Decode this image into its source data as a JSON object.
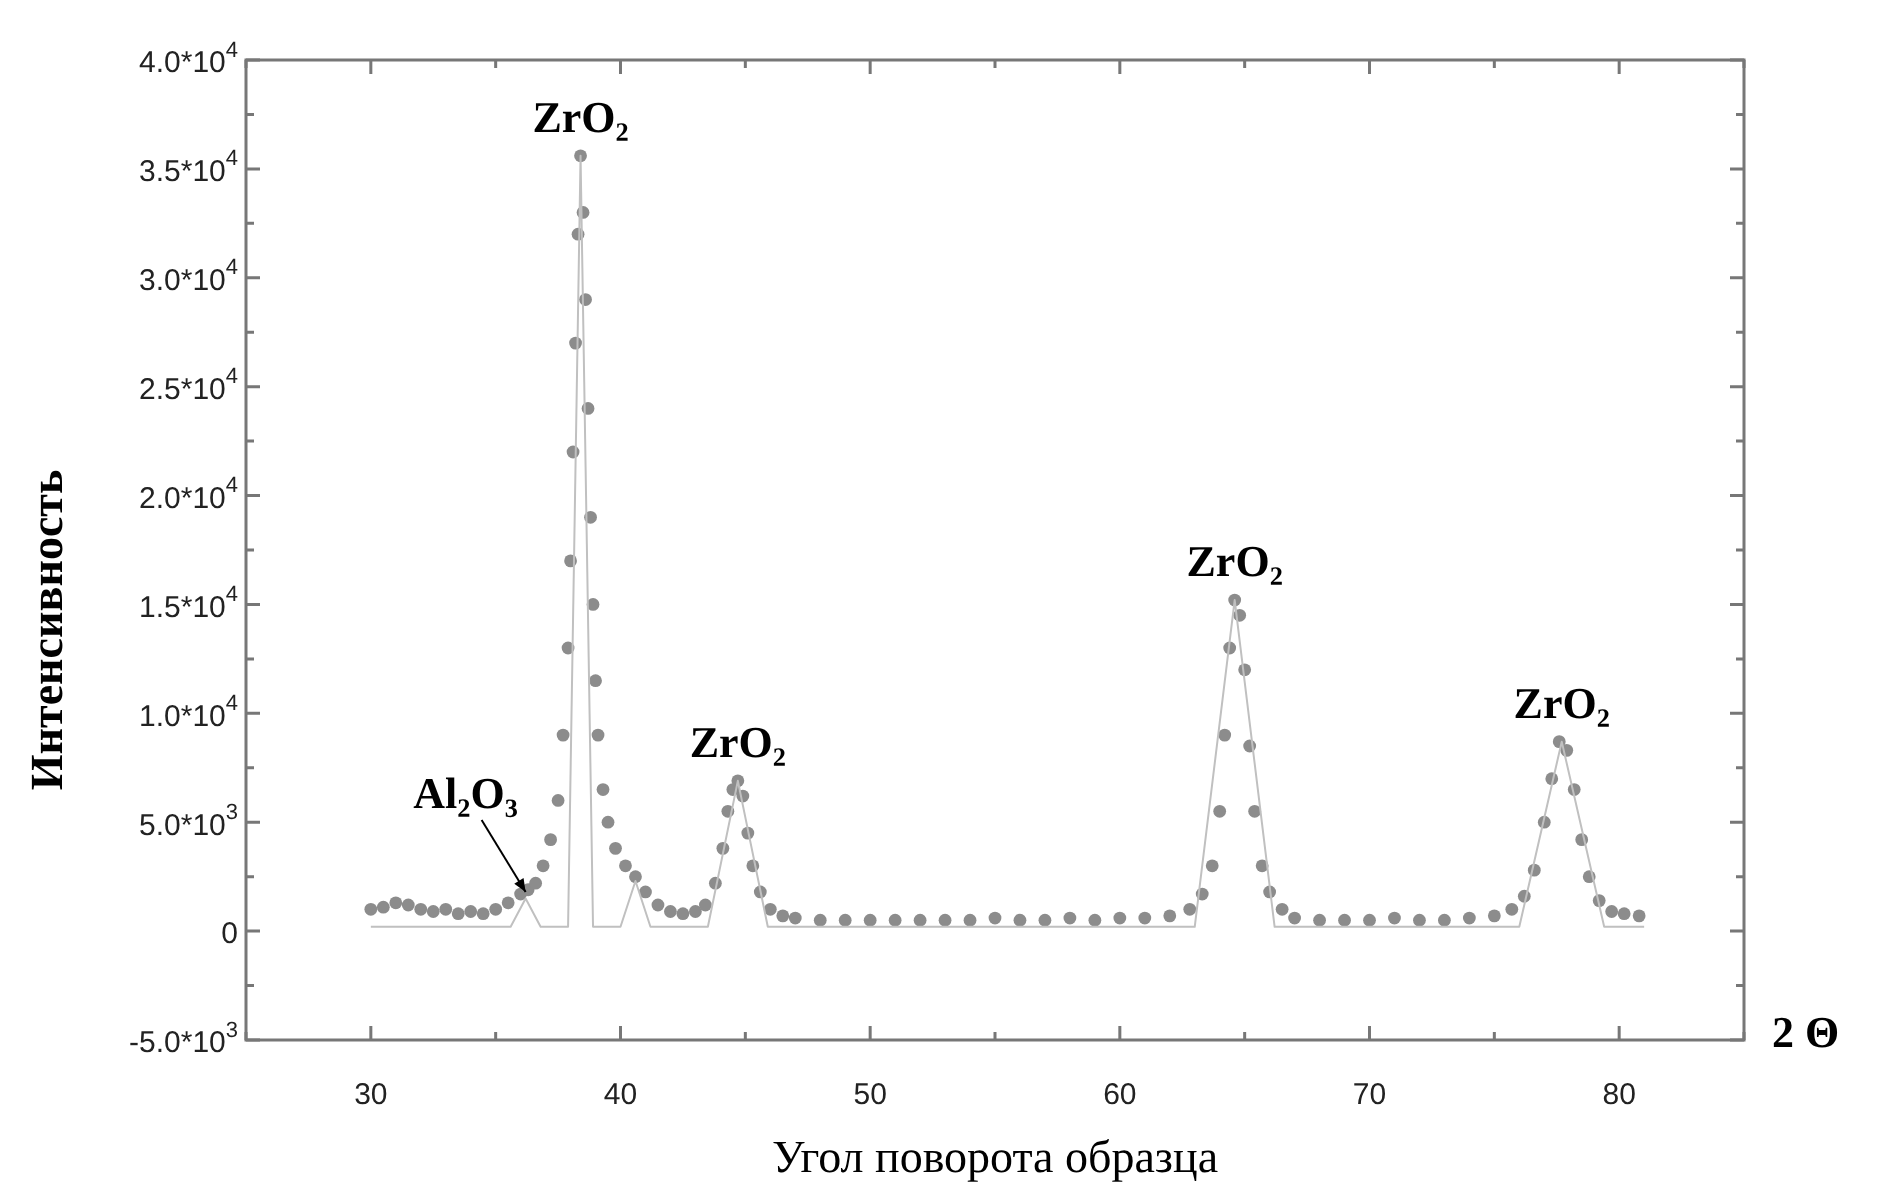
{
  "chart_data": {
    "type": "scatter",
    "xlabel": "Угол поворота образца",
    "ylabel": "Интенсивность",
    "marker": "circle",
    "xlim": [
      25,
      85
    ],
    "xticks": [
      {
        "value": 25,
        "label": null
      },
      30,
      {
        "value": 35,
        "label": null
      },
      40,
      {
        "value": 45,
        "label": null
      },
      50,
      {
        "value": 55,
        "label": null
      },
      60,
      {
        "value": 65,
        "label": null
      },
      70,
      {
        "value": 75,
        "label": null
      },
      80,
      {
        "value": 85,
        "label": null
      }
    ],
    "ylim": [
      -5000,
      40000
    ],
    "yticks": [
      {
        "value": -5000,
        "label": "-5.0*10$^{3}$"
      },
      {
        "value": -2500,
        "label": null
      },
      0,
      {
        "value": 2500,
        "label": null
      },
      {
        "value": 5000,
        "label": "5.0*10$^{3}$"
      },
      {
        "value": 7500,
        "label": null
      },
      {
        "value": 10000,
        "label": "1.0*10$^{4}$"
      },
      {
        "value": 12500,
        "label": null
      },
      {
        "value": 15000,
        "label": "1.5*10$^{4}$"
      },
      {
        "value": 17500,
        "label": null
      },
      {
        "value": 20000,
        "label": "2.0*10$^{4}$"
      },
      {
        "value": 22500,
        "label": null
      },
      {
        "value": 25000,
        "label": "2.5*10$^{4}$"
      },
      {
        "value": 27500,
        "label": null
      },
      {
        "value": 30000,
        "label": "3.0*10$^{4}$"
      },
      {
        "value": 32500,
        "label": null
      },
      {
        "value": 35000,
        "label": "3.5*10$^{4}$"
      },
      {
        "value": 37500,
        "label": null
      },
      {
        "value": 40000,
        "label": "4.0*10$^{4}$"
      }
    ],
    "series": [
      {
        "color": "#8c8c8c",
        "x": [
          30,
          30.5,
          31,
          31.5,
          32,
          32.5,
          33,
          33.5,
          34,
          34.5,
          35,
          35.5,
          36,
          36.3,
          36.6,
          36.9,
          37.2,
          37.5,
          37.7,
          37.9,
          38.0,
          38.1,
          38.2,
          38.3,
          38.4,
          38.5,
          38.6,
          38.7,
          38.8,
          38.9,
          39.0,
          39.1,
          39.3,
          39.5,
          39.8,
          40.2,
          40.6,
          41,
          41.5,
          42,
          42.5,
          43,
          43.4,
          43.8,
          44.1,
          44.3,
          44.5,
          44.7,
          44.9,
          45.1,
          45.3,
          45.6,
          46,
          46.5,
          47,
          48,
          49,
          50,
          51,
          52,
          53,
          54,
          55,
          56,
          57,
          58,
          59,
          60,
          61,
          62,
          62.8,
          63.3,
          63.7,
          64.0,
          64.2,
          64.4,
          64.6,
          64.8,
          65.0,
          65.2,
          65.4,
          65.7,
          66.0,
          66.5,
          67,
          68,
          69,
          70,
          71,
          72,
          73,
          74,
          75,
          75.7,
          76.2,
          76.6,
          77.0,
          77.3,
          77.6,
          77.9,
          78.2,
          78.5,
          78.8,
          79.2,
          79.7,
          80.2,
          80.8
        ],
        "values": [
          1000,
          1100,
          1300,
          1200,
          1000,
          900,
          1000,
          800,
          900,
          800,
          1000,
          1300,
          1700,
          1900,
          2200,
          3000,
          4200,
          6000,
          9000,
          13000,
          17000,
          22000,
          27000,
          32000,
          35600,
          33000,
          29000,
          24000,
          19000,
          15000,
          11500,
          9000,
          6500,
          5000,
          3800,
          3000,
          2500,
          1800,
          1200,
          900,
          800,
          900,
          1200,
          2200,
          3800,
          5500,
          6500,
          6900,
          6200,
          4500,
          3000,
          1800,
          1000,
          700,
          600,
          500,
          500,
          500,
          500,
          500,
          500,
          500,
          600,
          500,
          500,
          600,
          500,
          600,
          600,
          700,
          1000,
          1700,
          3000,
          5500,
          9000,
          13000,
          15200,
          14500,
          12000,
          8500,
          5500,
          3000,
          1800,
          1000,
          600,
          500,
          500,
          500,
          600,
          500,
          500,
          600,
          700,
          1000,
          1600,
          2800,
          5000,
          7000,
          8700,
          8300,
          6500,
          4200,
          2500,
          1400,
          900,
          800,
          700
        ]
      },
      {
        "type": "line",
        "color": "#c0c0c0",
        "marker": "none",
        "x": [
          30,
          35.6,
          36.2,
          36.8,
          37.9,
          38.4,
          38.9,
          40.0,
          40.6,
          41.2,
          43.5,
          44.7,
          45.9,
          63.0,
          64.6,
          66.2,
          76.0,
          77.7,
          79.4,
          81
        ],
        "values": [
          200,
          200,
          1500,
          200,
          200,
          35600,
          200,
          200,
          2300,
          200,
          200,
          6900,
          200,
          200,
          15200,
          200,
          200,
          8700,
          200,
          200
        ]
      }
    ],
    "annotations": [
      {
        "text": "ZrO₂",
        "x": 38.4,
        "y": 35600
      },
      {
        "text": "Al₂O₃",
        "x": 36.2,
        "y": 1800
      },
      {
        "text": "ZrO₂",
        "x": 44.7,
        "y": 6900
      },
      {
        "text": "ZrO₂",
        "x": 64.6,
        "y": 15200
      },
      {
        "text": "ZrO₂",
        "x": 77.7,
        "y": 8700
      },
      "2 Θ"
    ]
  }
}
